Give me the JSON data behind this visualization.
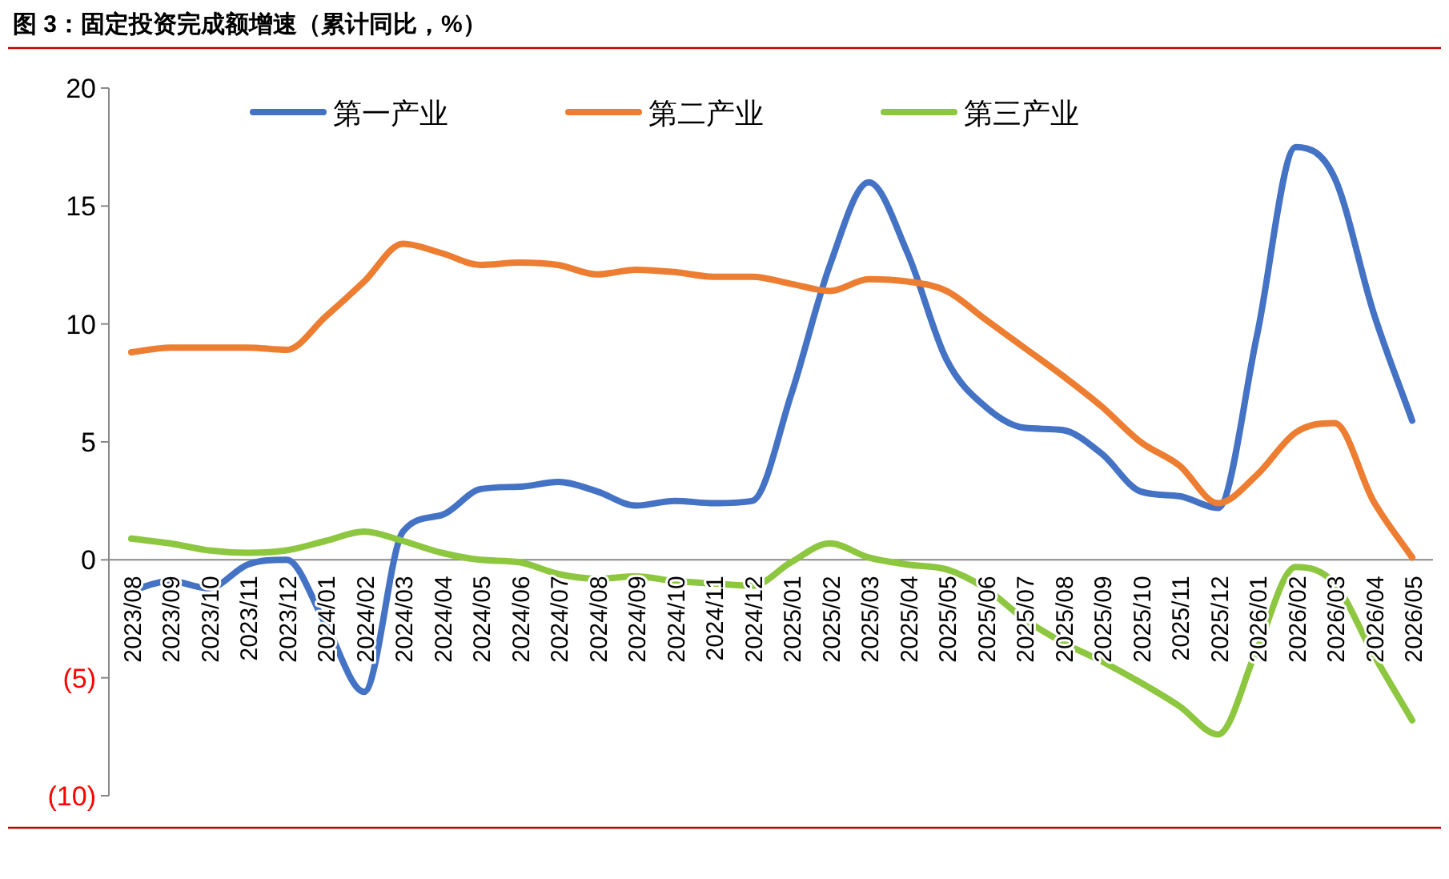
{
  "chart_data": {
    "type": "line",
    "title": "图 3：固定投资完成额增速（累计同比，%）",
    "categories": [
      "2023/08",
      "2023/09",
      "2023/10",
      "2023/11",
      "2023/12",
      "2024/01",
      "2024/02",
      "2024/03",
      "2024/04",
      "2024/05",
      "2024/06",
      "2024/07",
      "2024/08",
      "2024/09",
      "2024/10",
      "2024/11",
      "2024/12",
      "2025/01",
      "2025/02",
      "2025/03",
      "2025/04",
      "2025/05",
      "2025/06",
      "2025/07",
      "2025/08",
      "2025/09",
      "2025/10",
      "2025/11",
      "2025/12",
      "2026/01",
      "2026/02",
      "2026/03",
      "2026/04",
      "2026/05"
    ],
    "series": [
      {
        "name": "第一产业",
        "color": "#4472c4",
        "values": [
          -1.3,
          -0.9,
          -1.2,
          -0.2,
          0.0,
          -2.7,
          -5.6,
          1.2,
          1.9,
          3.0,
          3.1,
          3.3,
          2.9,
          2.3,
          2.5,
          2.4,
          2.5,
          7.0,
          12.5,
          16.0,
          13.0,
          8.5,
          6.5,
          5.6,
          5.5,
          4.5,
          2.9,
          2.7,
          2.2,
          9.5,
          17.5,
          16.2,
          10.5,
          5.9
        ]
      },
      {
        "name": "第二产业",
        "color": "#ed7d31",
        "values": [
          8.8,
          9.0,
          9.0,
          9.0,
          8.9,
          10.3,
          11.8,
          13.4,
          13.0,
          12.5,
          12.6,
          12.5,
          12.1,
          12.3,
          12.2,
          12.0,
          12.0,
          11.7,
          11.4,
          11.9,
          11.8,
          11.4,
          10.2,
          9.0,
          7.8,
          6.5,
          5.0,
          4.0,
          2.4,
          3.6,
          5.4,
          5.8,
          2.5,
          0.1
        ]
      },
      {
        "name": "第三产业",
        "color": "#8dc63f",
        "values": [
          0.9,
          0.7,
          0.4,
          0.3,
          0.4,
          0.8,
          1.2,
          0.8,
          0.3,
          0.0,
          -0.1,
          -0.6,
          -0.8,
          -0.7,
          -0.9,
          -1.0,
          -1.1,
          -0.1,
          0.7,
          0.1,
          -0.2,
          -0.4,
          -1.2,
          -2.5,
          -3.5,
          -4.3,
          -5.2,
          -6.2,
          -7.4,
          -3.8,
          -0.3,
          -1.0,
          -4.0,
          -6.8
        ]
      }
    ],
    "ylim": [
      -10,
      20
    ],
    "yticks": [
      {
        "value": -10,
        "label": "(10)"
      },
      {
        "value": -5,
        "label": "(5)"
      },
      0,
      5,
      10,
      15,
      20
    ],
    "legend": "top",
    "grid": false,
    "marker": "none",
    "line_style": "solid"
  }
}
